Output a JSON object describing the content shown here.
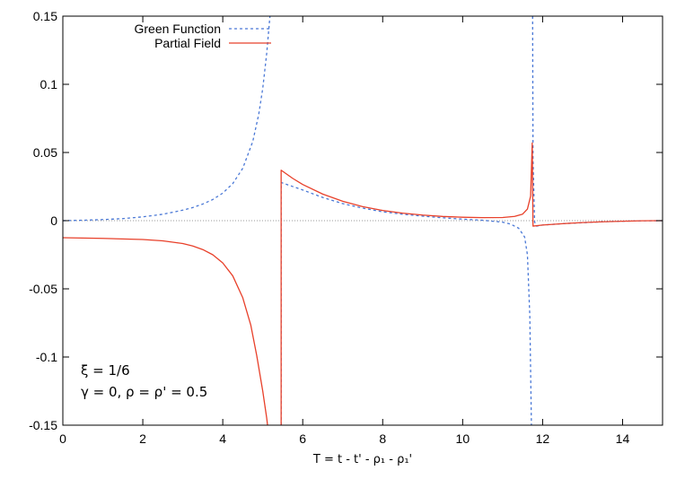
{
  "chart_data": {
    "type": "line",
    "title": "",
    "xlabel": "T = t - t' - ρ₁ - ρ₁'",
    "ylabel": "",
    "xlim": [
      0,
      15
    ],
    "ylim": [
      -0.15,
      0.15
    ],
    "x_ticks": [
      0,
      2,
      4,
      6,
      8,
      10,
      12,
      14
    ],
    "y_ticks": [
      -0.15,
      -0.1,
      -0.05,
      0,
      0.05,
      0.1,
      0.15
    ],
    "x_tick_labels": [
      "0",
      "2",
      "4",
      "6",
      "8",
      "10",
      "12",
      "14"
    ],
    "y_tick_labels": [
      "-0.15",
      "-0.1",
      "-0.05",
      "0",
      "0.05",
      "0.1",
      "0.15"
    ],
    "grid": false,
    "zero_line": true,
    "legend_position": "top-left",
    "annotations": [
      "ξ = 1/6",
      "γ = 0, ρ = ρ' = 0.5"
    ],
    "series": [
      {
        "name": "Green Function",
        "style": "dashed",
        "color": "#4a78d6",
        "points": [
          [
            0,
            0
          ],
          [
            0.5,
            0.0003
          ],
          [
            1,
            0.0008
          ],
          [
            1.5,
            0.0015
          ],
          [
            2,
            0.0028
          ],
          [
            2.5,
            0.0047
          ],
          [
            3,
            0.0077
          ],
          [
            3.25,
            0.0096
          ],
          [
            3.5,
            0.0122
          ],
          [
            3.75,
            0.0155
          ],
          [
            4,
            0.0202
          ],
          [
            4.25,
            0.0272
          ],
          [
            4.5,
            0.0384
          ],
          [
            4.75,
            0.058
          ],
          [
            4.9,
            0.078
          ],
          [
            5,
            0.097
          ],
          [
            5.1,
            0.123
          ],
          [
            5.18,
            0.15
          ]
        ]
      },
      {
        "name": "Green Function",
        "style": "dashed",
        "color": "#4a78d6",
        "points": [
          [
            5.46,
            -0.15
          ],
          [
            5.46,
            0.028
          ],
          [
            6,
            0.0225
          ],
          [
            6.5,
            0.017
          ],
          [
            7,
            0.0125
          ],
          [
            7.5,
            0.0092
          ],
          [
            8,
            0.0065
          ],
          [
            8.5,
            0.0047
          ],
          [
            9,
            0.0033
          ],
          [
            9.5,
            0.0021
          ],
          [
            10,
            0.0011
          ],
          [
            10.5,
            0.0003
          ],
          [
            11,
            -0.0011
          ],
          [
            11.2,
            -0.0025
          ],
          [
            11.4,
            -0.0055
          ],
          [
            11.55,
            -0.012
          ],
          [
            11.62,
            -0.025
          ],
          [
            11.68,
            -0.07
          ],
          [
            11.72,
            -0.15
          ]
        ]
      },
      {
        "name": "Green Function",
        "style": "dashed",
        "color": "#4a78d6",
        "points": [
          [
            11.75,
            0.15
          ],
          [
            11.76,
            0.045
          ],
          [
            11.8,
            -0.001
          ],
          [
            11.85,
            -0.004
          ],
          [
            12,
            -0.0032
          ],
          [
            12.5,
            -0.0022
          ],
          [
            13,
            -0.0015
          ],
          [
            13.5,
            -0.0008
          ],
          [
            14,
            -0.0004
          ],
          [
            14.5,
            -0.0001
          ],
          [
            15,
            0
          ]
        ]
      },
      {
        "name": "Partial Field",
        "style": "solid",
        "color": "#e8402a",
        "points": [
          [
            0,
            -0.0125
          ],
          [
            1,
            -0.013
          ],
          [
            2,
            -0.0138
          ],
          [
            2.5,
            -0.0148
          ],
          [
            3,
            -0.0168
          ],
          [
            3.25,
            -0.0186
          ],
          [
            3.5,
            -0.0212
          ],
          [
            3.75,
            -0.025
          ],
          [
            4,
            -0.031
          ],
          [
            4.25,
            -0.0405
          ],
          [
            4.5,
            -0.0565
          ],
          [
            4.7,
            -0.0765
          ],
          [
            4.85,
            -0.099
          ],
          [
            5,
            -0.125
          ],
          [
            5.1,
            -0.145
          ],
          [
            5.12,
            -0.15
          ]
        ]
      },
      {
        "name": "Partial Field",
        "style": "solid",
        "color": "#e8402a",
        "points": [
          [
            5.46,
            -0.15
          ],
          [
            5.46,
            0.037
          ],
          [
            5.75,
            0.031
          ],
          [
            6,
            0.0265
          ],
          [
            6.5,
            0.0195
          ],
          [
            7,
            0.0142
          ],
          [
            7.5,
            0.0103
          ],
          [
            8,
            0.0075
          ],
          [
            8.5,
            0.0055
          ],
          [
            9,
            0.0041
          ],
          [
            9.5,
            0.0031
          ],
          [
            10,
            0.0025
          ],
          [
            10.5,
            0.0022
          ],
          [
            11,
            0.0023
          ],
          [
            11.3,
            0.0031
          ],
          [
            11.5,
            0.0048
          ],
          [
            11.62,
            0.0085
          ],
          [
            11.7,
            0.018
          ],
          [
            11.74,
            0.057
          ],
          [
            11.76,
            -0.004
          ],
          [
            12,
            -0.0032
          ],
          [
            12.5,
            -0.0022
          ],
          [
            13,
            -0.0014
          ],
          [
            13.5,
            -0.0008
          ],
          [
            14,
            -0.0004
          ],
          [
            14.5,
            -0.0001
          ],
          [
            15,
            0
          ]
        ]
      }
    ]
  }
}
